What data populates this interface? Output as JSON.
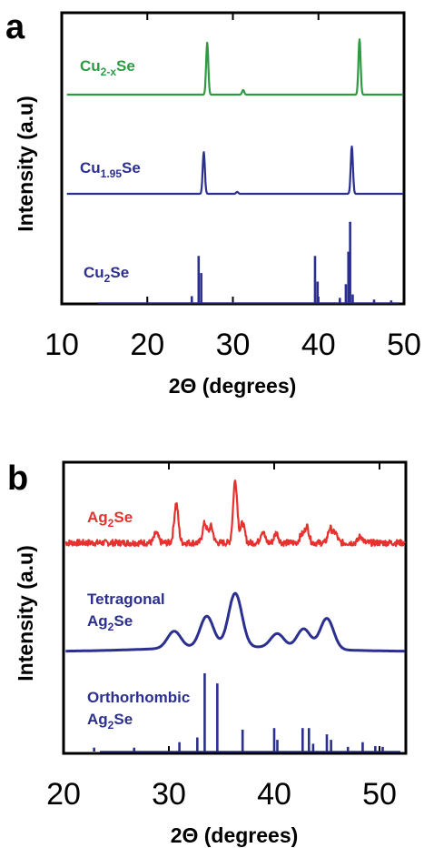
{
  "figure": {
    "panels": [
      {
        "letter": "a",
        "xlabel": "2Θ (degrees)",
        "ylabel": "Intensity (a.u)"
      },
      {
        "letter": "b",
        "xlabel": "2Θ (degrees)",
        "ylabel": "Intensity (a.u)"
      }
    ]
  },
  "colors": {
    "green": "#2e9a44",
    "navy": "#2b2f8f",
    "red": "#e8312e"
  },
  "chart_data": [
    {
      "type": "line",
      "panel": "a",
      "xlabel": "2Θ (degrees)",
      "ylabel": "Intensity (a.u)",
      "xlim": [
        10,
        50
      ],
      "xticks": [
        "10",
        "20",
        "30",
        "40",
        "50"
      ],
      "grid": false,
      "series": [
        {
          "name": "Cu2-xSe",
          "label_main": "Cu",
          "label_sub": "2-x",
          "label_tail": "Se",
          "color": "#2e9a44",
          "style": "line",
          "peaks": [
            {
              "x": 27.0,
              "h": 0.92
            },
            {
              "x": 31.2,
              "h": 0.08
            },
            {
              "x": 44.8,
              "h": 0.98
            }
          ]
        },
        {
          "name": "Cu1.95Se",
          "label_main": "Cu",
          "label_sub": "1.95",
          "label_tail": "Se",
          "color": "#2b2f8f",
          "style": "line",
          "peaks": [
            {
              "x": 26.6,
              "h": 0.88
            },
            {
              "x": 30.5,
              "h": 0.04
            },
            {
              "x": 43.9,
              "h": 1.0
            }
          ]
        },
        {
          "name": "Cu2Se",
          "label_main": "Cu",
          "label_sub": "2",
          "label_tail": "Se",
          "color": "#2b2f8f",
          "style": "stick",
          "peaks": [
            {
              "x": 25.2,
              "h": 0.08
            },
            {
              "x": 26.0,
              "h": 0.55
            },
            {
              "x": 26.3,
              "h": 0.35
            },
            {
              "x": 39.6,
              "h": 0.55
            },
            {
              "x": 39.9,
              "h": 0.25
            },
            {
              "x": 42.5,
              "h": 0.06
            },
            {
              "x": 43.2,
              "h": 0.22
            },
            {
              "x": 43.5,
              "h": 0.6
            },
            {
              "x": 43.7,
              "h": 0.95
            },
            {
              "x": 44.0,
              "h": 0.1
            },
            {
              "x": 46.5,
              "h": 0.04
            },
            {
              "x": 48.5,
              "h": 0.03
            }
          ]
        }
      ]
    },
    {
      "type": "line",
      "panel": "b",
      "xlabel": "2Θ (degrees)",
      "ylabel": "Intensity (a.u)",
      "xlim": [
        20,
        52.5
      ],
      "xticks": [
        "20",
        "30",
        "40",
        "50"
      ],
      "grid": false,
      "series": [
        {
          "name": "Ag2Se",
          "label_main": "Ag",
          "label_sub": "2",
          "label_tail": "Se",
          "color": "#e8312e",
          "style": "noisy",
          "peaks": [
            {
              "x": 28.8,
              "h": 0.15
            },
            {
              "x": 30.7,
              "h": 0.6
            },
            {
              "x": 33.4,
              "h": 0.3
            },
            {
              "x": 34.0,
              "h": 0.25
            },
            {
              "x": 36.3,
              "h": 0.95
            },
            {
              "x": 37.0,
              "h": 0.3
            },
            {
              "x": 38.9,
              "h": 0.18
            },
            {
              "x": 40.2,
              "h": 0.15
            },
            {
              "x": 42.6,
              "h": 0.12
            },
            {
              "x": 43.1,
              "h": 0.25
            },
            {
              "x": 45.3,
              "h": 0.22
            },
            {
              "x": 45.8,
              "h": 0.15
            },
            {
              "x": 48.2,
              "h": 0.1
            }
          ]
        },
        {
          "name": "Tetragonal Ag2Se",
          "label_pre": "Tetragonal",
          "label_main": "Ag",
          "label_sub": "2",
          "label_tail": "Se",
          "color": "#2b2f8f",
          "style": "broad",
          "peaks": [
            {
              "x": 30.5,
              "h": 0.3
            },
            {
              "x": 33.6,
              "h": 0.55
            },
            {
              "x": 36.3,
              "h": 0.95
            },
            {
              "x": 40.3,
              "h": 0.25
            },
            {
              "x": 42.8,
              "h": 0.35
            },
            {
              "x": 45.0,
              "h": 0.55
            }
          ]
        },
        {
          "name": "Orthorhombic Ag2Se",
          "label_pre": "Orthorhombic",
          "label_main": "Ag",
          "label_sub": "2",
          "label_tail": "Se",
          "color": "#2b2f8f",
          "style": "stick",
          "peaks": [
            {
              "x": 22.9,
              "h": 0.05
            },
            {
              "x": 26.7,
              "h": 0.05
            },
            {
              "x": 31.0,
              "h": 0.12
            },
            {
              "x": 32.7,
              "h": 0.18
            },
            {
              "x": 33.4,
              "h": 1.0
            },
            {
              "x": 34.6,
              "h": 0.87
            },
            {
              "x": 37.0,
              "h": 0.28
            },
            {
              "x": 40.0,
              "h": 0.3
            },
            {
              "x": 40.3,
              "h": 0.15
            },
            {
              "x": 42.7,
              "h": 0.3
            },
            {
              "x": 43.3,
              "h": 0.3
            },
            {
              "x": 43.7,
              "h": 0.1
            },
            {
              "x": 45.0,
              "h": 0.22
            },
            {
              "x": 45.4,
              "h": 0.15
            },
            {
              "x": 47.0,
              "h": 0.06
            },
            {
              "x": 48.4,
              "h": 0.12
            },
            {
              "x": 49.6,
              "h": 0.07
            },
            {
              "x": 50.3,
              "h": 0.06
            }
          ]
        }
      ]
    }
  ]
}
